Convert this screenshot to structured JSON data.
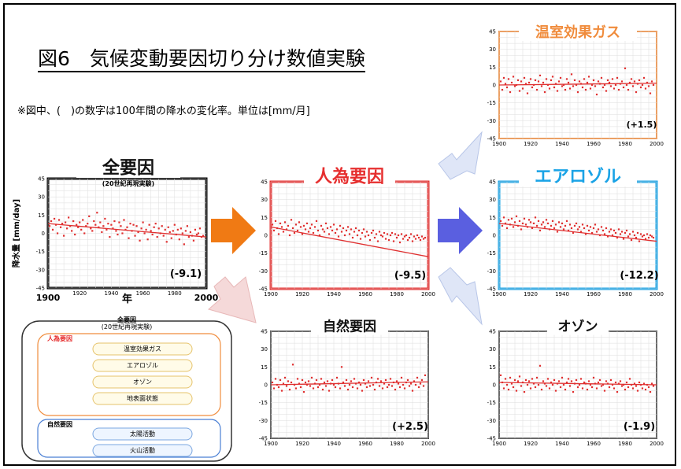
{
  "page": {
    "title": "図6　気候変動要因切り分け数値実験",
    "note": "※図中、(　)の数字は100年間の降水の変化率。単位は[mm/月]"
  },
  "colors": {
    "frame_black": "#000000",
    "anthro_red": "#e62e2e",
    "aerosol_cyan": "#1aa3e6",
    "ghg_orange": "#f08c3c",
    "ozone_gray": "#444444",
    "natural_gray": "#444444",
    "arrow_orange": "#f07a14",
    "arrow_blue": "#5a5fe0",
    "arrow_pale_pink": "#f5d9d9",
    "arrow_pale_blue": "#dfe6f7",
    "data_red": "#e03030"
  },
  "chart_data": [
    {
      "id": "all",
      "type": "scatter",
      "title": "全要因",
      "subtitle": "(20世紀再現実験)",
      "rate_label": "(-9.1)",
      "ylabel": "降水量 [mm/day]",
      "xlabel": "年",
      "xlim": [
        1900,
        2000
      ],
      "ylim": [
        -45,
        45
      ],
      "x_ticks_big": [
        "1900",
        "2000"
      ],
      "x_ticks": [
        "1920",
        "1940",
        "1960",
        "1980"
      ],
      "y_ticks": [
        "45",
        "30",
        "15",
        "0",
        "-15",
        "-30",
        "-45"
      ],
      "trend": [
        8.0,
        -1.1
      ],
      "x": [
        1901,
        1902,
        1903,
        1904,
        1905,
        1906,
        1907,
        1908,
        1909,
        1910,
        1911,
        1912,
        1913,
        1914,
        1915,
        1916,
        1917,
        1918,
        1919,
        1920,
        1921,
        1922,
        1923,
        1924,
        1925,
        1926,
        1927,
        1928,
        1929,
        1930,
        1931,
        1932,
        1933,
        1934,
        1935,
        1936,
        1937,
        1938,
        1939,
        1940,
        1941,
        1942,
        1943,
        1944,
        1945,
        1946,
        1947,
        1948,
        1949,
        1950,
        1951,
        1952,
        1953,
        1954,
        1955,
        1956,
        1957,
        1958,
        1959,
        1960,
        1961,
        1962,
        1963,
        1964,
        1965,
        1966,
        1967,
        1968,
        1969,
        1970,
        1971,
        1972,
        1973,
        1974,
        1975,
        1976,
        1977,
        1978,
        1979,
        1980,
        1981,
        1982,
        1983,
        1984,
        1985,
        1986,
        1987,
        1988,
        1989,
        1990,
        1991,
        1992,
        1993,
        1994,
        1995,
        1996,
        1997,
        1998
      ],
      "y": [
        6,
        10,
        3,
        12,
        7,
        0,
        11,
        5,
        8,
        -2,
        9,
        4,
        13,
        6,
        2,
        10,
        -1,
        7,
        5,
        9,
        3,
        11,
        0,
        6,
        8,
        14,
        4,
        2,
        10,
        7,
        17,
        5,
        9,
        1,
        6,
        12,
        3,
        8,
        -3,
        7,
        4,
        10,
        2,
        -1,
        9,
        6,
        0,
        11,
        3,
        5,
        -4,
        8,
        2,
        7,
        -2,
        6,
        1,
        -6,
        4,
        9,
        0,
        3,
        -5,
        7,
        2,
        -1,
        5,
        8,
        -3,
        4,
        0,
        6,
        -2,
        3,
        -7,
        5,
        1,
        -4,
        2,
        7,
        -1,
        3,
        -5,
        4,
        0,
        -9,
        2,
        6,
        -3,
        1,
        -2,
        -6,
        3,
        -1,
        0,
        4,
        -3,
        -2
      ]
    },
    {
      "id": "anthro",
      "type": "scatter",
      "title": "人為要因",
      "rate_label": "(-9.5)",
      "xlim": [
        1900,
        2000
      ],
      "ylim": [
        -45,
        45
      ],
      "x_ticks": [
        "1900",
        "1920",
        "1940",
        "1960",
        "1980",
        "2000"
      ],
      "y_ticks": [
        "45",
        "30",
        "15",
        "0",
        "-15",
        "-30",
        "-45"
      ],
      "trend": [
        7.0,
        -2.5
      ],
      "x": [
        1901,
        1902,
        1903,
        1904,
        1905,
        1906,
        1907,
        1908,
        1909,
        1910,
        1911,
        1912,
        1913,
        1914,
        1915,
        1916,
        1917,
        1918,
        1919,
        1920,
        1921,
        1922,
        1923,
        1924,
        1925,
        1926,
        1927,
        1928,
        1929,
        1930,
        1931,
        1932,
        1933,
        1934,
        1935,
        1936,
        1937,
        1938,
        1939,
        1940,
        1941,
        1942,
        1943,
        1944,
        1945,
        1946,
        1947,
        1948,
        1949,
        1950,
        1951,
        1952,
        1953,
        1954,
        1955,
        1956,
        1957,
        1958,
        1959,
        1960,
        1961,
        1962,
        1963,
        1964,
        1965,
        1966,
        1967,
        1968,
        1969,
        1970,
        1971,
        1972,
        1973,
        1974,
        1975,
        1976,
        1977,
        1978,
        1979,
        1980,
        1981,
        1982,
        1983,
        1984,
        1985,
        1986,
        1987,
        1988,
        1989,
        1990,
        1991,
        1992,
        1993,
        1994,
        1995,
        1996,
        1997,
        1998
      ],
      "y": [
        9,
        4,
        12,
        6,
        1,
        10,
        7,
        3,
        11,
        5,
        8,
        0,
        13,
        6,
        2,
        9,
        4,
        11,
        7,
        1,
        8,
        5,
        10,
        3,
        6,
        9,
        2,
        7,
        12,
        4,
        0,
        8,
        5,
        3,
        10,
        6,
        1,
        7,
        4,
        9,
        2,
        5,
        -1,
        8,
        3,
        6,
        0,
        4,
        7,
        1,
        5,
        -2,
        3,
        6,
        0,
        4,
        -3,
        2,
        5,
        -1,
        3,
        0,
        -4,
        2,
        4,
        -2,
        1,
        -5,
        3,
        0,
        -1,
        2,
        -3,
        1,
        -4,
        0,
        2,
        -5,
        1,
        -2,
        0,
        -6,
        1,
        -3,
        -1,
        0,
        -4,
        -2,
        1,
        -5,
        -1,
        -3,
        0,
        -2,
        -4,
        -1,
        -3,
        -2
      ]
    },
    {
      "id": "ghg",
      "type": "scatter",
      "title": "温室効果ガス",
      "rate_label": "(+1.5)",
      "xlim": [
        1900,
        2000
      ],
      "ylim": [
        -45,
        45
      ],
      "x_ticks": [
        "1900",
        "1920",
        "1940",
        "1960",
        "1980",
        "2000"
      ],
      "y_ticks": [
        "45",
        "30",
        "15",
        "0",
        "-15",
        "-30",
        "-45"
      ],
      "trend": [
        0.0,
        0.15
      ],
      "x": [
        1901,
        1902,
        1903,
        1904,
        1905,
        1906,
        1907,
        1908,
        1909,
        1910,
        1911,
        1912,
        1913,
        1914,
        1915,
        1916,
        1917,
        1918,
        1919,
        1920,
        1921,
        1922,
        1923,
        1924,
        1925,
        1926,
        1927,
        1928,
        1929,
        1930,
        1931,
        1932,
        1933,
        1934,
        1935,
        1936,
        1937,
        1938,
        1939,
        1940,
        1941,
        1942,
        1943,
        1944,
        1945,
        1946,
        1947,
        1948,
        1949,
        1950,
        1951,
        1952,
        1953,
        1954,
        1955,
        1956,
        1957,
        1958,
        1959,
        1960,
        1961,
        1962,
        1963,
        1964,
        1965,
        1966,
        1967,
        1968,
        1969,
        1970,
        1971,
        1972,
        1973,
        1974,
        1975,
        1976,
        1977,
        1978,
        1979,
        1980,
        1981,
        1982,
        1983,
        1984,
        1985,
        1986,
        1987,
        1988,
        1989,
        1990,
        1991,
        1992,
        1993,
        1994,
        1995,
        1996,
        1997,
        1998
      ],
      "y": [
        3,
        -4,
        6,
        1,
        -2,
        5,
        -6,
        2,
        7,
        -1,
        0,
        4,
        -5,
        3,
        -3,
        6,
        1,
        -7,
        2,
        5,
        -2,
        0,
        4,
        -4,
        3,
        8,
        -1,
        2,
        -6,
        5,
        0,
        -3,
        4,
        7,
        -2,
        1,
        -5,
        3,
        6,
        -1,
        0,
        -4,
        5,
        2,
        -3,
        9,
        -1,
        4,
        0,
        -6,
        3,
        1,
        -2,
        5,
        -4,
        2,
        7,
        -3,
        0,
        4,
        -1,
        -8,
        3,
        1,
        6,
        -2,
        0,
        -5,
        4,
        2,
        -1,
        5,
        -3,
        0,
        6,
        -4,
        1,
        3,
        -2,
        14,
        0,
        -4,
        2,
        5,
        -1,
        3,
        -6,
        1,
        4,
        -2,
        0,
        6,
        -3,
        2,
        -1,
        -7,
        3,
        0
      ]
    },
    {
      "id": "aerosol",
      "type": "scatter",
      "title": "エアロゾル",
      "rate_label": "(-12.2)",
      "xlim": [
        1900,
        2000
      ],
      "ylim": [
        -45,
        45
      ],
      "x_ticks": [
        "1900",
        "1920",
        "1940",
        "1960",
        "1980",
        "2000"
      ],
      "y_ticks": [
        "45",
        "30",
        "15",
        "0",
        "-15",
        "-30",
        "-45"
      ],
      "trend": [
        10.0,
        -1.5
      ],
      "x": [
        1901,
        1902,
        1903,
        1904,
        1905,
        1906,
        1907,
        1908,
        1909,
        1910,
        1911,
        1912,
        1913,
        1914,
        1915,
        1916,
        1917,
        1918,
        1919,
        1920,
        1921,
        1922,
        1923,
        1924,
        1925,
        1926,
        1927,
        1928,
        1929,
        1930,
        1931,
        1932,
        1933,
        1934,
        1935,
        1936,
        1937,
        1938,
        1939,
        1940,
        1941,
        1942,
        1943,
        1944,
        1945,
        1946,
        1947,
        1948,
        1949,
        1950,
        1951,
        1952,
        1953,
        1954,
        1955,
        1956,
        1957,
        1958,
        1959,
        1960,
        1961,
        1962,
        1963,
        1964,
        1965,
        1966,
        1967,
        1968,
        1969,
        1970,
        1971,
        1972,
        1973,
        1974,
        1975,
        1976,
        1977,
        1978,
        1979,
        1980,
        1981,
        1982,
        1983,
        1984,
        1985,
        1986,
        1987,
        1988,
        1989,
        1990,
        1991,
        1992,
        1993,
        1994,
        1995,
        1996,
        1997,
        1998
      ],
      "y": [
        12,
        8,
        15,
        10,
        6,
        13,
        9,
        14,
        7,
        11,
        16,
        8,
        12,
        5,
        10,
        14,
        9,
        7,
        13,
        11,
        6,
        10,
        15,
        8,
        12,
        4,
        9,
        11,
        7,
        13,
        10,
        5,
        8,
        12,
        6,
        9,
        3,
        11,
        7,
        10,
        5,
        8,
        12,
        4,
        9,
        6,
        2,
        8,
        10,
        5,
        7,
        3,
        9,
        6,
        1,
        8,
        4,
        7,
        2,
        6,
        9,
        3,
        5,
        0,
        7,
        4,
        1,
        6,
        -1,
        3,
        5,
        0,
        4,
        2,
        -2,
        5,
        1,
        3,
        -3,
        2,
        4,
        -1,
        1,
        -4,
        3,
        0,
        -2,
        2,
        -5,
        1,
        -1,
        0,
        -3,
        1,
        -2,
        0,
        -1,
        -2
      ]
    },
    {
      "id": "natural",
      "type": "scatter",
      "title": "自然要因",
      "rate_label": "(+2.5)",
      "xlim": [
        1900,
        2000
      ],
      "ylim": [
        -45,
        45
      ],
      "x_ticks": [
        "1900",
        "1920",
        "1940",
        "1960",
        "1980",
        "2000"
      ],
      "y_ticks": [
        "45",
        "30",
        "15",
        "0",
        "-15",
        "-30",
        "-45"
      ],
      "trend": [
        0.0,
        0.25
      ],
      "x": [
        1901,
        1902,
        1903,
        1904,
        1905,
        1906,
        1907,
        1908,
        1909,
        1910,
        1911,
        1912,
        1913,
        1914,
        1915,
        1916,
        1917,
        1918,
        1919,
        1920,
        1921,
        1922,
        1923,
        1924,
        1925,
        1926,
        1927,
        1928,
        1929,
        1930,
        1931,
        1932,
        1933,
        1934,
        1935,
        1936,
        1937,
        1938,
        1939,
        1940,
        1941,
        1942,
        1943,
        1944,
        1945,
        1946,
        1947,
        1948,
        1949,
        1950,
        1951,
        1952,
        1953,
        1954,
        1955,
        1956,
        1957,
        1958,
        1959,
        1960,
        1961,
        1962,
        1963,
        1964,
        1965,
        1966,
        1967,
        1968,
        1969,
        1970,
        1971,
        1972,
        1973,
        1974,
        1975,
        1976,
        1977,
        1978,
        1979,
        1980,
        1981,
        1982,
        1983,
        1984,
        1985,
        1986,
        1987,
        1988,
        1989,
        1990,
        1991,
        1992,
        1993,
        1994,
        1995,
        1996,
        1997,
        1998
      ],
      "y": [
        2,
        -3,
        5,
        0,
        -2,
        4,
        -5,
        1,
        6,
        -1,
        3,
        -4,
        2,
        17,
        0,
        -3,
        5,
        1,
        -2,
        4,
        -6,
        2,
        0,
        3,
        -1,
        6,
        -3,
        1,
        4,
        -2,
        0,
        5,
        -4,
        2,
        -1,
        3,
        -5,
        1,
        4,
        0,
        -2,
        6,
        1,
        -3,
        15,
        2,
        -1,
        4,
        -4,
        0,
        3,
        -2,
        5,
        1,
        -3,
        2,
        0,
        -5,
        4,
        1,
        -2,
        3,
        -1,
        6,
        0,
        -4,
        2,
        5,
        -1,
        3,
        -3,
        1,
        4,
        -2,
        0,
        5,
        -1,
        2,
        -4,
        3,
        1,
        -2,
        6,
        0,
        -3,
        2,
        4,
        -1,
        1,
        -5,
        3,
        0,
        6,
        -2,
        1,
        4,
        -1,
        8
      ]
    },
    {
      "id": "ozone",
      "type": "scatter",
      "title": "オゾン",
      "rate_label": "(-1.9)",
      "xlim": [
        1900,
        2000
      ],
      "ylim": [
        -45,
        45
      ],
      "x_ticks": [
        "1900",
        "1920",
        "1940",
        "1960",
        "1980",
        "2000"
      ],
      "y_ticks": [
        "45",
        "30",
        "15",
        "0",
        "-15",
        "-30",
        "-45"
      ],
      "trend": [
        2.0,
        -0.2
      ],
      "x": [
        1901,
        1902,
        1903,
        1904,
        1905,
        1906,
        1907,
        1908,
        1909,
        1910,
        1911,
        1912,
        1913,
        1914,
        1915,
        1916,
        1917,
        1918,
        1919,
        1920,
        1921,
        1922,
        1923,
        1924,
        1925,
        1926,
        1927,
        1928,
        1929,
        1930,
        1931,
        1932,
        1933,
        1934,
        1935,
        1936,
        1937,
        1938,
        1939,
        1940,
        1941,
        1942,
        1943,
        1944,
        1945,
        1946,
        1947,
        1948,
        1949,
        1950,
        1951,
        1952,
        1953,
        1954,
        1955,
        1956,
        1957,
        1958,
        1959,
        1960,
        1961,
        1962,
        1963,
        1964,
        1965,
        1966,
        1967,
        1968,
        1969,
        1970,
        1971,
        1972,
        1973,
        1974,
        1975,
        1976,
        1977,
        1978,
        1979,
        1980,
        1981,
        1982,
        1983,
        1984,
        1985,
        1986,
        1987,
        1988,
        1989,
        1990,
        1991,
        1992,
        1993,
        1994,
        1995,
        1996,
        1997,
        1998
      ],
      "y": [
        8,
        2,
        -3,
        5,
        0,
        -4,
        6,
        1,
        -2,
        4,
        -5,
        3,
        7,
        -1,
        2,
        -6,
        4,
        0,
        3,
        -3,
        5,
        1,
        -2,
        6,
        0,
        16,
        -4,
        3,
        1,
        -1,
        5,
        -3,
        2,
        0,
        4,
        -5,
        1,
        3,
        -2,
        6,
        0,
        -4,
        2,
        5,
        -1,
        3,
        -6,
        1,
        4,
        -2,
        0,
        5,
        -3,
        2,
        1,
        -4,
        3,
        0,
        -2,
        6,
        1,
        -3,
        2,
        4,
        -1,
        0,
        -5,
        3,
        1,
        -2,
        4,
        0,
        -3,
        2,
        -6,
        1,
        3,
        -1,
        0,
        -4,
        2,
        -2,
        5,
        0,
        -3,
        1,
        -1,
        -5,
        2,
        0,
        -3,
        1,
        -4,
        0,
        -2,
        -6,
        1,
        -1
      ]
    }
  ],
  "diagram": {
    "top_label": "全要因",
    "top_sub": "(20世紀再現実験)",
    "anthro_label": "人為要因",
    "anthro_items": [
      "温室効果ガス",
      "エアロゾル",
      "オゾン",
      "地表面状態"
    ],
    "natural_label": "自然要因",
    "natural_items": [
      "太陽活動",
      "火山活動"
    ]
  }
}
